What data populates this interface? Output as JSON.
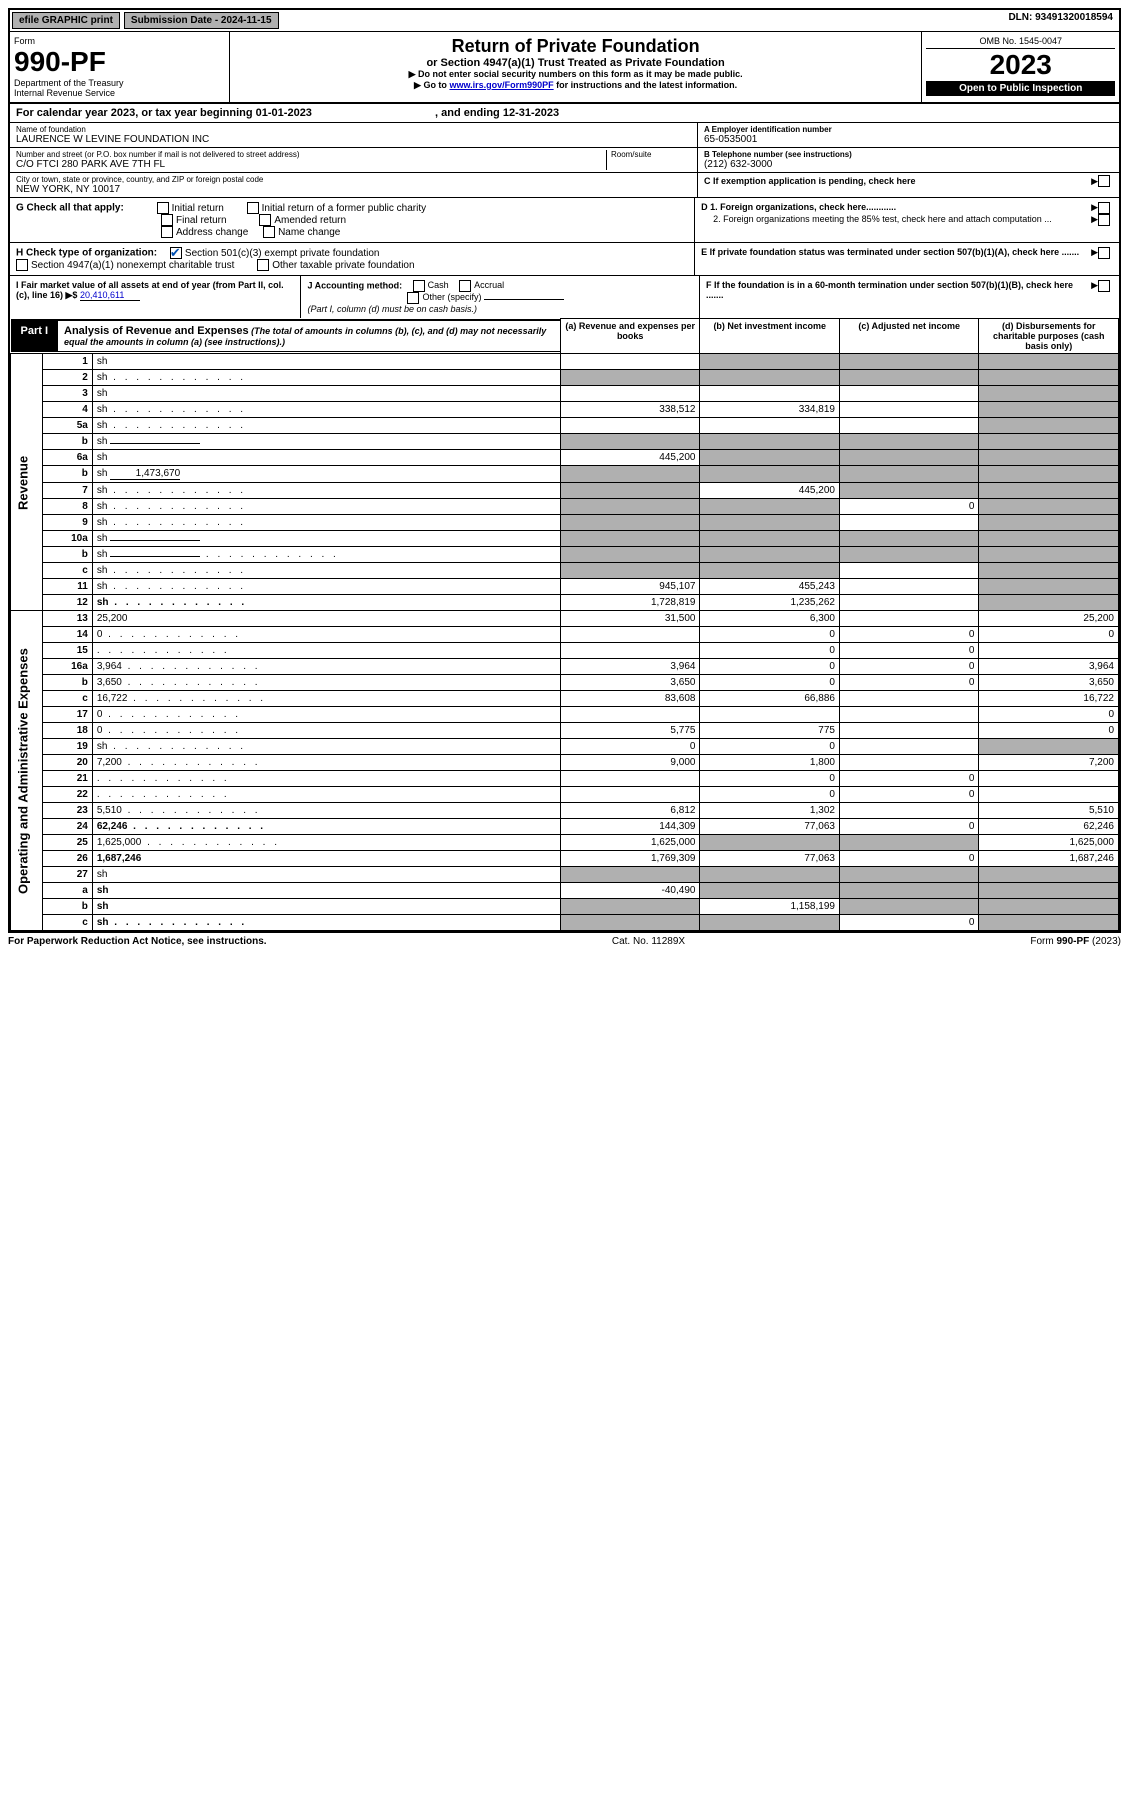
{
  "topbar": {
    "efile": "efile GRAPHIC print",
    "sub_label": "Submission Date - ",
    "sub_date": "2024-11-15",
    "dln_label": "DLN: ",
    "dln": "93491320018594"
  },
  "header": {
    "form_word": "Form",
    "form_no": "990-PF",
    "dept": "Department of the Treasury",
    "irs": "Internal Revenue Service",
    "title": "Return of Private Foundation",
    "subtitle": "or Section 4947(a)(1) Trust Treated as Private Foundation",
    "instr1": "▶ Do not enter social security numbers on this form as it may be made public.",
    "instr2_pre": "▶ Go to ",
    "instr2_link": "www.irs.gov/Form990PF",
    "instr2_post": " for instructions and the latest information.",
    "omb": "OMB No. 1545-0047",
    "year": "2023",
    "otp": "Open to Public Inspection"
  },
  "cal": {
    "pre": "For calendar year 2023, or tax year beginning ",
    "begin": "01-01-2023",
    "mid": " , and ending ",
    "end": "12-31-2023"
  },
  "info": {
    "name_lbl": "Name of foundation",
    "name": "LAURENCE W LEVINE FOUNDATION INC",
    "addr_lbl": "Number and street (or P.O. box number if mail is not delivered to street address)",
    "addr": "C/O FTCI 280 PARK AVE 7TH FL",
    "room_lbl": "Room/suite",
    "city_lbl": "City or town, state or province, country, and ZIP or foreign postal code",
    "city": "NEW YORK, NY  10017",
    "a_lbl": "A Employer identification number",
    "a_val": "65-0535001",
    "b_lbl": "B Telephone number (see instructions)",
    "b_val": "(212) 632-3000",
    "c_lbl": "C If exemption application is pending, check here",
    "d1": "D 1. Foreign organizations, check here............",
    "d2": "2. Foreign organizations meeting the 85% test, check here and attach computation ...",
    "e": "E  If private foundation status was terminated under section 507(b)(1)(A), check here .......",
    "f": "F  If the foundation is in a 60-month termination under section 507(b)(1)(B), check here .......",
    "g_lbl": "G Check all that apply:",
    "g_opts": [
      "Initial return",
      "Initial return of a former public charity",
      "Final return",
      "Amended return",
      "Address change",
      "Name change"
    ],
    "h_lbl": "H Check type of organization:",
    "h1": "Section 501(c)(3) exempt private foundation",
    "h2": "Section 4947(a)(1) nonexempt charitable trust",
    "h3": "Other taxable private foundation",
    "i_lbl": "I Fair market value of all assets at end of year (from Part II, col. (c), line 16) ▶$",
    "i_val": "20,410,611",
    "j_lbl": "J Accounting method:",
    "j_cash": "Cash",
    "j_acc": "Accrual",
    "j_other": "Other (specify)",
    "j_note": "(Part I, column (d) must be on cash basis.)"
  },
  "part1": {
    "tag": "Part I",
    "title": "Analysis of Revenue and Expenses",
    "note": "(The total of amounts in columns (b), (c), and (d) may not necessarily equal the amounts in column (a) (see instructions).)",
    "cols": {
      "a": "(a) Revenue and expenses per books",
      "b": "(b) Net investment income",
      "c": "(c) Adjusted net income",
      "d": "(d) Disbursements for charitable purposes (cash basis only)"
    },
    "vlabels": {
      "rev": "Revenue",
      "exp": "Operating and Administrative Expenses"
    },
    "rows": [
      {
        "n": "1",
        "d": "sh",
        "a": "",
        "b": "sh",
        "c": "sh"
      },
      {
        "n": "2",
        "d": "sh",
        "a": "sh",
        "b": "sh",
        "c": "sh",
        "dots": true
      },
      {
        "n": "3",
        "d": "sh",
        "a": "",
        "b": "",
        "c": ""
      },
      {
        "n": "4",
        "d": "sh",
        "a": "338,512",
        "b": "334,819",
        "c": "",
        "dots": true
      },
      {
        "n": "5a",
        "d": "sh",
        "a": "",
        "b": "",
        "c": "",
        "dots": true
      },
      {
        "n": "b",
        "d": "sh",
        "a": "sh",
        "b": "sh",
        "c": "sh",
        "uline": true
      },
      {
        "n": "6a",
        "d": "sh",
        "a": "445,200",
        "b": "sh",
        "c": "sh"
      },
      {
        "n": "b",
        "d": "sh",
        "a": "sh",
        "b": "sh",
        "c": "sh",
        "inline_val": "1,473,670"
      },
      {
        "n": "7",
        "d": "sh",
        "a": "sh",
        "b": "445,200",
        "c": "sh",
        "dots": true
      },
      {
        "n": "8",
        "d": "sh",
        "a": "sh",
        "b": "sh",
        "c": "0",
        "dots": true
      },
      {
        "n": "9",
        "d": "sh",
        "a": "sh",
        "b": "sh",
        "c": "",
        "dots": true
      },
      {
        "n": "10a",
        "d": "sh",
        "a": "sh",
        "b": "sh",
        "c": "sh",
        "uline": true
      },
      {
        "n": "b",
        "d": "sh",
        "a": "sh",
        "b": "sh",
        "c": "sh",
        "dots": true,
        "uline": true
      },
      {
        "n": "c",
        "d": "sh",
        "a": "sh",
        "b": "sh",
        "c": "",
        "dots": true
      },
      {
        "n": "11",
        "d": "sh",
        "a": "945,107",
        "b": "455,243",
        "c": "",
        "dots": true
      },
      {
        "n": "12",
        "d": "sh",
        "a": "1,728,819",
        "b": "1,235,262",
        "c": "",
        "bold": true,
        "dots": true
      },
      {
        "n": "13",
        "d": "25,200",
        "a": "31,500",
        "b": "6,300",
        "c": ""
      },
      {
        "n": "14",
        "d": "0",
        "a": "",
        "b": "0",
        "c": "0",
        "dots": true
      },
      {
        "n": "15",
        "d": "",
        "a": "",
        "b": "0",
        "c": "0",
        "dots": true
      },
      {
        "n": "16a",
        "d": "3,964",
        "a": "3,964",
        "b": "0",
        "c": "0",
        "dots": true
      },
      {
        "n": "b",
        "d": "3,650",
        "a": "3,650",
        "b": "0",
        "c": "0",
        "dots": true
      },
      {
        "n": "c",
        "d": "16,722",
        "a": "83,608",
        "b": "66,886",
        "c": "",
        "dots": true
      },
      {
        "n": "17",
        "d": "0",
        "a": "",
        "b": "",
        "c": "",
        "dots": true
      },
      {
        "n": "18",
        "d": "0",
        "a": "5,775",
        "b": "775",
        "c": "",
        "dots": true
      },
      {
        "n": "19",
        "d": "sh",
        "a": "0",
        "b": "0",
        "c": "",
        "dots": true
      },
      {
        "n": "20",
        "d": "7,200",
        "a": "9,000",
        "b": "1,800",
        "c": "",
        "dots": true
      },
      {
        "n": "21",
        "d": "",
        "a": "",
        "b": "0",
        "c": "0",
        "dots": true
      },
      {
        "n": "22",
        "d": "",
        "a": "",
        "b": "0",
        "c": "0",
        "dots": true
      },
      {
        "n": "23",
        "d": "5,510",
        "a": "6,812",
        "b": "1,302",
        "c": "",
        "dots": true
      },
      {
        "n": "24",
        "d": "62,246",
        "a": "144,309",
        "b": "77,063",
        "c": "0",
        "bold": true,
        "dots": true
      },
      {
        "n": "25",
        "d": "1,625,000",
        "a": "1,625,000",
        "b": "sh",
        "c": "sh",
        "dots": true
      },
      {
        "n": "26",
        "d": "1,687,246",
        "a": "1,769,309",
        "b": "77,063",
        "c": "0",
        "bold": true
      },
      {
        "n": "27",
        "d": "sh",
        "a": "sh",
        "b": "sh",
        "c": "sh"
      },
      {
        "n": "a",
        "d": "sh",
        "a": "-40,490",
        "b": "sh",
        "c": "sh",
        "bold": true
      },
      {
        "n": "b",
        "d": "sh",
        "a": "sh",
        "b": "1,158,199",
        "c": "sh",
        "bold": true
      },
      {
        "n": "c",
        "d": "sh",
        "a": "sh",
        "b": "sh",
        "c": "0",
        "bold": true,
        "dots": true
      }
    ]
  },
  "footer": {
    "left": "For Paperwork Reduction Act Notice, see instructions.",
    "mid": "Cat. No. 11289X",
    "right": "Form 990-PF (2023)"
  }
}
